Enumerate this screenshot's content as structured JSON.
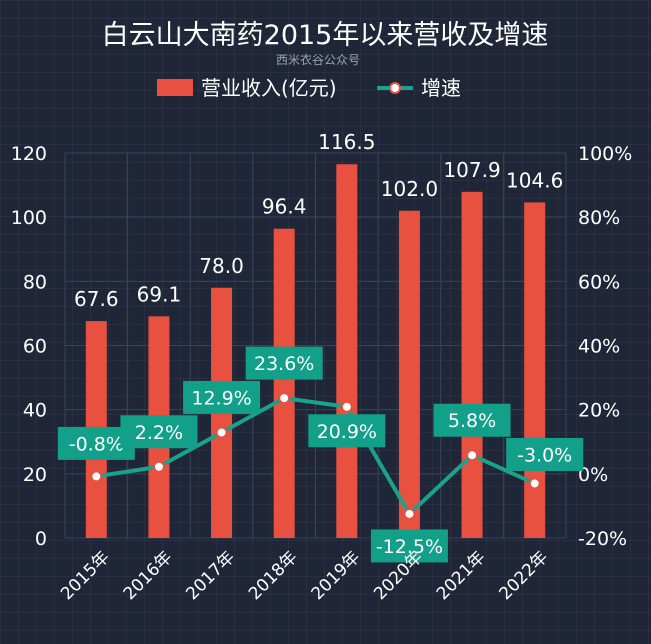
{
  "title": "白云山大南药2015年以来营收及增速",
  "subtitle": "西米衣谷公众号",
  "colors": {
    "bar": "#e8503f",
    "line": "#1aa28a",
    "label_box": "#12a08a",
    "point_fill": "#ffffff",
    "point_stroke": "#e8503f"
  },
  "chart_data": {
    "type": "bar",
    "categories": [
      "2015年",
      "2016年",
      "2017年",
      "2018年",
      "2019年",
      "2020年",
      "2021年",
      "2022年"
    ],
    "series": [
      {
        "name": "营业收入(亿元)",
        "type": "bar",
        "axis": "left",
        "values": [
          67.6,
          69.1,
          78.0,
          96.4,
          116.5,
          102.0,
          107.9,
          104.6
        ],
        "labels": [
          "67.6",
          "69.1",
          "78.0",
          "96.4",
          "116.5",
          "102.0",
          "107.9",
          "104.6"
        ]
      },
      {
        "name": "增速",
        "type": "line",
        "axis": "right",
        "values": [
          -0.8,
          2.2,
          12.9,
          23.6,
          20.9,
          -12.5,
          5.8,
          -3.0
        ],
        "labels": [
          "-0.8%",
          "2.2%",
          "12.9%",
          "23.6%",
          "20.9%",
          "-12.5%",
          "5.8%",
          "-3.0%"
        ]
      }
    ],
    "y_left": {
      "min": 0,
      "max": 120,
      "ticks": [
        "0",
        "20",
        "40",
        "60",
        "80",
        "100",
        "120"
      ]
    },
    "y_right": {
      "min": -20,
      "max": 100,
      "ticks": [
        "-20%",
        "0%",
        "20%",
        "40%",
        "60%",
        "80%",
        "100%"
      ]
    },
    "legend": [
      "营业收入(亿元)",
      "增速"
    ],
    "legend_position": "top-center",
    "grid": true
  }
}
